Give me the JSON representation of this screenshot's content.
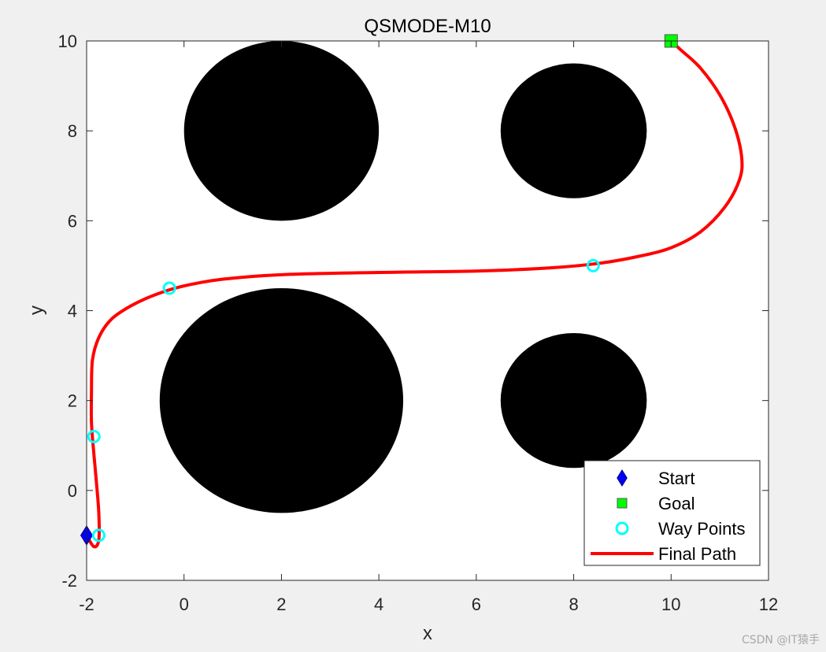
{
  "chart_data": {
    "type": "scatter",
    "title": "QSMODE-M10",
    "xlabel": "x",
    "ylabel": "y",
    "xlim": [
      -2,
      12
    ],
    "ylim": [
      -2,
      10
    ],
    "x_ticks": [
      -2,
      0,
      2,
      4,
      6,
      8,
      10,
      12
    ],
    "y_ticks": [
      -2,
      0,
      2,
      4,
      6,
      8,
      10
    ],
    "grid": false,
    "legend_location": "bottom-right",
    "obstacles": [
      {
        "cx": 2,
        "cy": 8,
        "r": 2
      },
      {
        "cx": 8,
        "cy": 8,
        "r": 1.5
      },
      {
        "cx": 2,
        "cy": 2,
        "r": 2.5
      },
      {
        "cx": 8,
        "cy": 2,
        "r": 1.5
      }
    ],
    "series": [
      {
        "name": "Start",
        "marker": "diamond",
        "color": "#0000ff",
        "points": [
          [
            -2,
            -1
          ]
        ]
      },
      {
        "name": "Goal",
        "marker": "square",
        "color": "#00ff00",
        "points": [
          [
            10,
            10
          ]
        ]
      },
      {
        "name": "Way Points",
        "marker": "circle-open",
        "color": "#00ffff",
        "points": [
          [
            -1.75,
            -1.0
          ],
          [
            -1.85,
            1.2
          ],
          [
            -0.3,
            4.5
          ],
          [
            8.4,
            5.0
          ]
        ]
      },
      {
        "name": "Final Path",
        "marker": "line",
        "color": "#ff0000",
        "points": [
          [
            -2.0,
            -1.0
          ],
          [
            -1.85,
            -1.25
          ],
          [
            -1.75,
            -1.1
          ],
          [
            -1.75,
            -0.5
          ],
          [
            -1.8,
            0.2
          ],
          [
            -1.85,
            0.8
          ],
          [
            -1.9,
            1.5
          ],
          [
            -1.9,
            2.2
          ],
          [
            -1.88,
            2.9
          ],
          [
            -1.75,
            3.4
          ],
          [
            -1.5,
            3.8
          ],
          [
            -1.1,
            4.1
          ],
          [
            -0.6,
            4.35
          ],
          [
            0.0,
            4.55
          ],
          [
            0.8,
            4.7
          ],
          [
            2.0,
            4.8
          ],
          [
            4.0,
            4.85
          ],
          [
            6.0,
            4.88
          ],
          [
            7.5,
            4.95
          ],
          [
            8.5,
            5.05
          ],
          [
            9.3,
            5.2
          ],
          [
            10.0,
            5.4
          ],
          [
            10.6,
            5.75
          ],
          [
            11.1,
            6.3
          ],
          [
            11.4,
            6.9
          ],
          [
            11.45,
            7.4
          ],
          [
            11.3,
            8.1
          ],
          [
            11.0,
            8.8
          ],
          [
            10.6,
            9.4
          ],
          [
            10.2,
            9.8
          ],
          [
            10.0,
            10.0
          ]
        ]
      }
    ]
  }
}
